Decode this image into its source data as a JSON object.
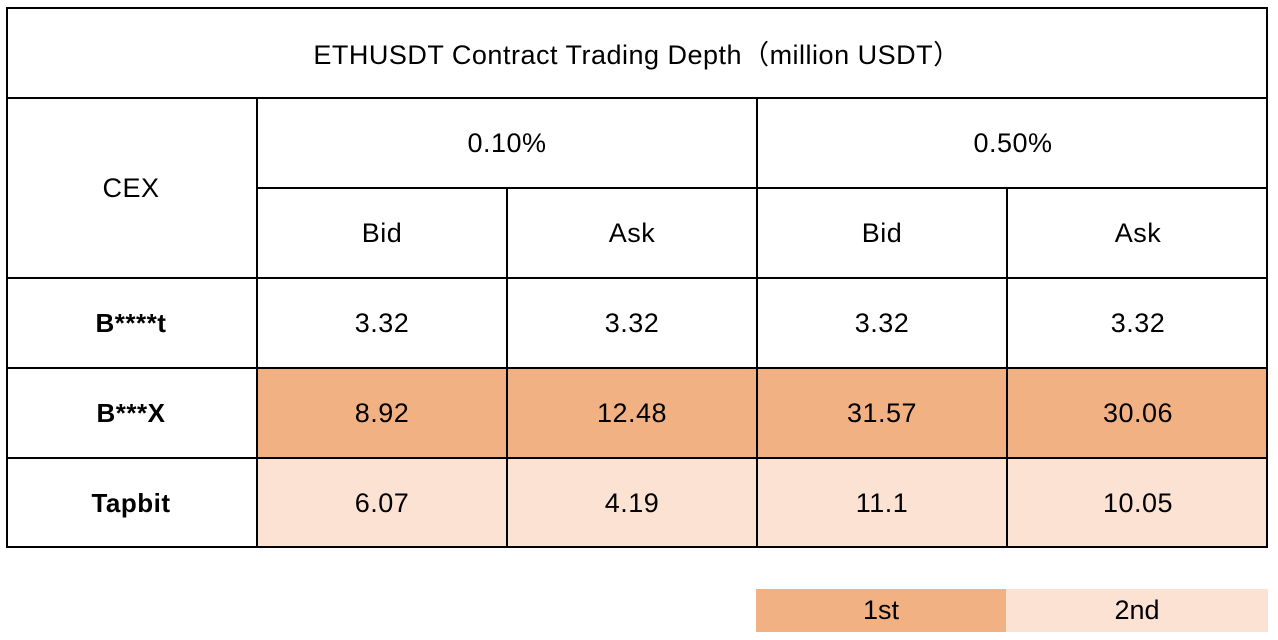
{
  "table": {
    "title": "ETHUSDT Contract Trading Depth（million USDT）",
    "cex_header": "CEX",
    "depth_levels": [
      "0.10%",
      "0.50%"
    ],
    "sub_headers": [
      "Bid",
      "Ask",
      "Bid",
      "Ask"
    ],
    "rows": [
      {
        "name": "B****t",
        "values": [
          "3.32",
          "3.32",
          "3.32",
          "3.32"
        ],
        "rank": "none"
      },
      {
        "name": "B***X",
        "values": [
          "8.92",
          "12.48",
          "31.57",
          "30.06"
        ],
        "rank": "1st"
      },
      {
        "name": "Tapbit",
        "values": [
          "6.07",
          "4.19",
          "11.1",
          "10.05"
        ],
        "rank": "2nd"
      }
    ]
  },
  "legend": {
    "first_label": "1st",
    "second_label": "2nd",
    "first_color": "#f2b183",
    "second_color": "#fbe2d2"
  }
}
